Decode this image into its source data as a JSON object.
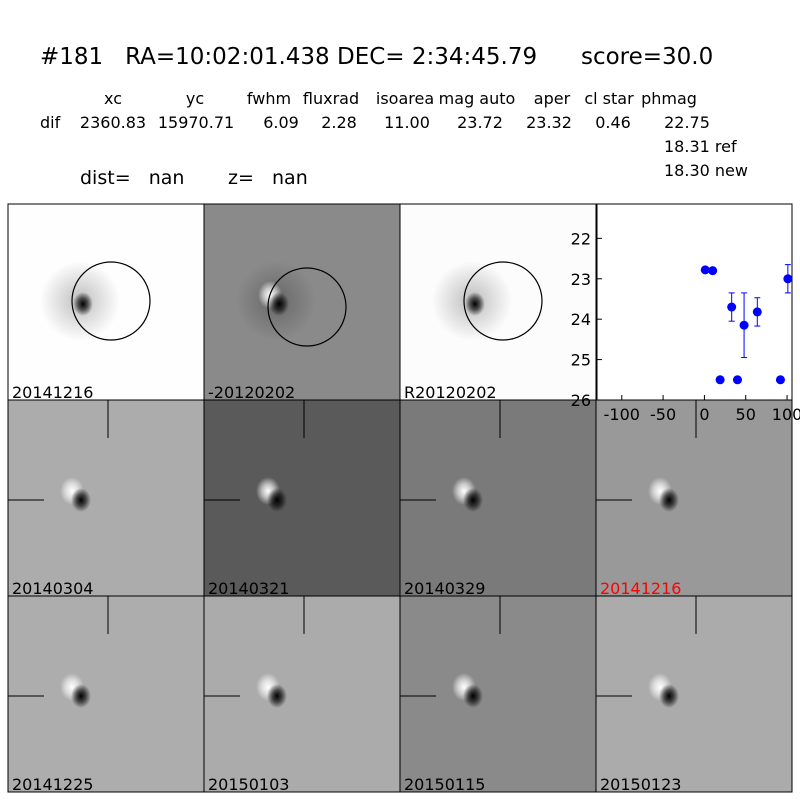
{
  "header": {
    "title": "#181   RA=10:02:01.438 DEC= 2:34:45.79      score=30.0"
  },
  "table": {
    "columns": [
      "xc",
      "yc",
      "fwhm",
      "fluxrad",
      "isoarea",
      "mag auto",
      "aper",
      "cl star",
      "phmag"
    ],
    "row_label": "dif",
    "row": [
      "2360.83",
      "15970.71",
      "6.09",
      "2.28",
      "11.00",
      "23.72",
      "23.32",
      "0.46",
      "22.75"
    ],
    "extra": [
      "18.31 ref",
      "18.30 new"
    ]
  },
  "dist": "dist=   nan",
  "z": "z=   nan",
  "panels": [
    {
      "label": "20141216"
    },
    {
      "label": "-20120202"
    },
    {
      "label": "R20120202"
    },
    {
      "label": "20140304"
    },
    {
      "label": "20140321"
    },
    {
      "label": "20140329"
    },
    {
      "label": "20141216",
      "color": "#ff0000"
    },
    {
      "label": "20141225"
    },
    {
      "label": "20150103"
    },
    {
      "label": "20150115"
    },
    {
      "label": "20150123"
    }
  ],
  "chart_data": {
    "type": "errorbar",
    "x": [
      1,
      10,
      19,
      33,
      40,
      48,
      64,
      92,
      101
    ],
    "series": [
      {
        "color": "#0000ff",
        "values": [
          22.78,
          22.8,
          25.5,
          23.7,
          25.5,
          24.15,
          23.82,
          25.5,
          23.0
        ],
        "errors": [
          0.05,
          0.07,
          0,
          0.35,
          0,
          0.8,
          0.35,
          0,
          0.35
        ]
      }
    ],
    "xlim": [
      -130,
      106
    ],
    "ylim": [
      26,
      21.15
    ],
    "xticks": [
      -100,
      -50,
      0,
      50,
      100
    ],
    "yticks": [
      22,
      23,
      24,
      25,
      26
    ]
  }
}
